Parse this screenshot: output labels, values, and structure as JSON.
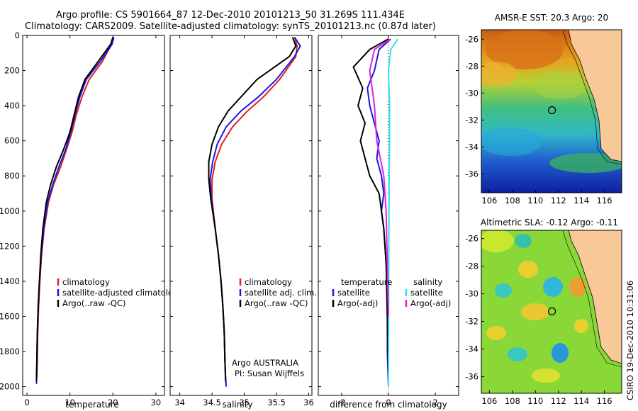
{
  "header": {
    "line1": "Argo profile: CS 5901664_87 12-Dec-2010 20101213_50 31.269S 111.434E",
    "line2": "Climatology: CARS2009. Satellite-adjusted climatology: synTS_20101213.nc (0.87d later)"
  },
  "stamp": "CSIRO 19-Dec-2010 10:31:06",
  "colors": {
    "clim": "#e02020",
    "sat": "#1818e0",
    "argo": "#000000",
    "satS": "#30e0e8",
    "argoS": "#e020e0"
  },
  "chart_data": [
    {
      "type": "line",
      "panel": "temperature",
      "xlabel": "temperature",
      "ylabel": "",
      "xlim": [
        -1,
        32
      ],
      "ylim": [
        2050,
        0
      ],
      "xticks": [
        "0",
        "10",
        "20",
        "30"
      ],
      "yticks": [
        "0",
        "200",
        "400",
        "600",
        "800",
        "1000",
        "1200",
        "1400",
        "1600",
        "1800",
        "2000"
      ],
      "legend": [
        "climatology",
        "satellite-adjusted climatology",
        "Argo(..raw -QC)"
      ],
      "series": [
        {
          "name": "climatology",
          "color": "clim",
          "x": [
            20.2,
            19.7,
            17.5,
            14.5,
            12.8,
            11.5,
            10.5,
            9.2,
            7.8,
            6.2,
            5.0,
            4.0,
            3.4,
            3.0,
            2.7,
            2.5,
            2.4,
            2.3
          ],
          "y": [
            10,
            50,
            150,
            250,
            350,
            450,
            550,
            650,
            750,
            850,
            950,
            1100,
            1250,
            1400,
            1550,
            1700,
            1850,
            1950
          ]
        },
        {
          "name": "satellite-adjusted climatology",
          "color": "sat",
          "x": [
            20.2,
            19.8,
            17.0,
            13.8,
            12.3,
            11.2,
            10.2,
            9.0,
            7.4,
            6.0,
            4.8,
            3.9,
            3.3,
            2.9,
            2.6,
            2.4,
            2.3,
            2.2
          ],
          "y": [
            10,
            50,
            150,
            250,
            350,
            450,
            550,
            650,
            750,
            850,
            950,
            1100,
            1250,
            1400,
            1550,
            1700,
            1850,
            1985
          ]
        },
        {
          "name": "Argo(..raw -QC)",
          "color": "argo",
          "x": [
            20.0,
            19.5,
            16.5,
            13.5,
            12.0,
            11.0,
            10.0,
            8.5,
            6.8,
            5.5,
            4.5,
            3.7,
            3.2,
            2.9,
            2.6,
            2.4,
            2.3,
            2.2
          ],
          "y": [
            10,
            50,
            150,
            250,
            350,
            450,
            550,
            650,
            750,
            850,
            950,
            1100,
            1250,
            1400,
            1550,
            1700,
            1850,
            1970
          ]
        }
      ]
    },
    {
      "type": "line",
      "panel": "salinity",
      "xlabel": "salinity",
      "ylabel": "",
      "xlim": [
        33.85,
        36.05
      ],
      "ylim": [
        2050,
        0
      ],
      "xticks": [
        "34",
        "34.5",
        "35",
        "35.5",
        "36"
      ],
      "legend": [
        "climatology",
        "satellite adj. clim.",
        "Argo(..raw -QC)"
      ],
      "annotation": [
        "Argo AUSTRALIA",
        "PI: Susan Wijffels"
      ],
      "series": [
        {
          "name": "climatology",
          "color": "clim",
          "x": [
            35.78,
            35.82,
            35.8,
            35.55,
            35.3,
            35.05,
            34.82,
            34.65,
            34.55,
            34.5,
            34.5,
            34.55,
            34.6,
            34.64,
            34.67,
            34.69,
            34.7,
            34.71,
            34.72
          ],
          "y": [
            10,
            60,
            120,
            250,
            350,
            430,
            520,
            620,
            720,
            820,
            930,
            1100,
            1250,
            1400,
            1550,
            1700,
            1850,
            1950,
            2000
          ]
        },
        {
          "name": "satellite adj. clim.",
          "color": "sat",
          "x": [
            35.78,
            35.87,
            35.78,
            35.5,
            35.22,
            34.95,
            34.72,
            34.58,
            34.51,
            34.47,
            34.49,
            34.55,
            34.6,
            34.64,
            34.67,
            34.69,
            34.7,
            34.71,
            34.72
          ],
          "y": [
            10,
            60,
            120,
            250,
            350,
            430,
            520,
            620,
            720,
            820,
            930,
            1100,
            1250,
            1400,
            1550,
            1700,
            1850,
            1950,
            2000
          ]
        },
        {
          "name": "Argo(..raw -QC)",
          "color": "argo",
          "x": [
            35.75,
            35.8,
            35.7,
            35.2,
            34.95,
            34.75,
            34.6,
            34.5,
            34.45,
            34.45,
            34.48,
            34.55,
            34.6,
            34.64,
            34.67,
            34.69,
            34.7,
            34.71
          ],
          "y": [
            10,
            60,
            120,
            250,
            350,
            430,
            520,
            620,
            720,
            820,
            930,
            1100,
            1250,
            1400,
            1550,
            1700,
            1850,
            1970
          ]
        }
      ]
    },
    {
      "type": "line",
      "panel": "difference",
      "xlabel": "difference from climatology",
      "ylabel": "",
      "xlim": [
        -3,
        3
      ],
      "ylim": [
        2050,
        0
      ],
      "xticks": [
        "-2",
        "0",
        "2"
      ],
      "legend": [
        "temperature",
        "satellite",
        "Argo(-adj)",
        "salinity",
        "satellite",
        "Argo(-adj)"
      ],
      "series": [
        {
          "name": "temperature satellite",
          "color": "sat",
          "x": [
            0.1,
            -0.4,
            -0.6,
            -0.9,
            -0.8,
            -0.6,
            -0.4,
            -0.5,
            -0.3,
            -0.2,
            -0.3,
            -0.2,
            -0.1,
            -0.05,
            -0.05,
            0.0
          ],
          "y": [
            20,
            80,
            200,
            300,
            400,
            500,
            600,
            700,
            800,
            900,
            1000,
            1100,
            1300,
            1500,
            1800,
            2000
          ]
        },
        {
          "name": "temperature Argo(-adj)",
          "color": "argo",
          "x": [
            0.0,
            -0.8,
            -1.5,
            -1.1,
            -1.3,
            -1.0,
            -1.2,
            -0.8,
            -0.4,
            -0.3,
            -0.2,
            -0.1,
            -0.05,
            0.0
          ],
          "y": [
            20,
            80,
            180,
            300,
            400,
            500,
            600,
            800,
            900,
            1000,
            1100,
            1300,
            1600,
            1950
          ]
        },
        {
          "name": "salinity satellite",
          "color": "satS",
          "x": [
            0.4,
            0.1,
            0.0,
            0.05,
            0.05,
            0.03,
            0.02,
            0.01,
            0.0
          ],
          "y": [
            20,
            80,
            200,
            400,
            600,
            800,
            1000,
            1400,
            2000
          ]
        },
        {
          "name": "salinity Argo(-adj)",
          "color": "argoS",
          "x": [
            0.1,
            -0.6,
            -0.8,
            -0.6,
            -0.5,
            -0.2,
            -0.1,
            -0.05,
            0.0
          ],
          "y": [
            20,
            80,
            200,
            400,
            600,
            800,
            1000,
            1300,
            1600
          ]
        }
      ]
    },
    {
      "type": "heatmap",
      "panel": "sst-map",
      "title": "AMSR-E SST: 20.3 Argo: 20",
      "xticks": [
        "106",
        "108",
        "110",
        "112",
        "114",
        "116"
      ],
      "yticks": [
        "-26",
        "-28",
        "-30",
        "-32",
        "-34",
        "-36"
      ],
      "marker": {
        "lon": 111.434,
        "lat": -31.269
      }
    },
    {
      "type": "heatmap",
      "panel": "sla-map",
      "title": "Altimetric SLA: -0.12 Argo: -0.11",
      "xticks": [
        "106",
        "108",
        "110",
        "112",
        "114",
        "116"
      ],
      "yticks": [
        "-26",
        "-28",
        "-30",
        "-32",
        "-34",
        "-36"
      ],
      "marker": {
        "lon": 111.434,
        "lat": -31.269
      }
    }
  ]
}
